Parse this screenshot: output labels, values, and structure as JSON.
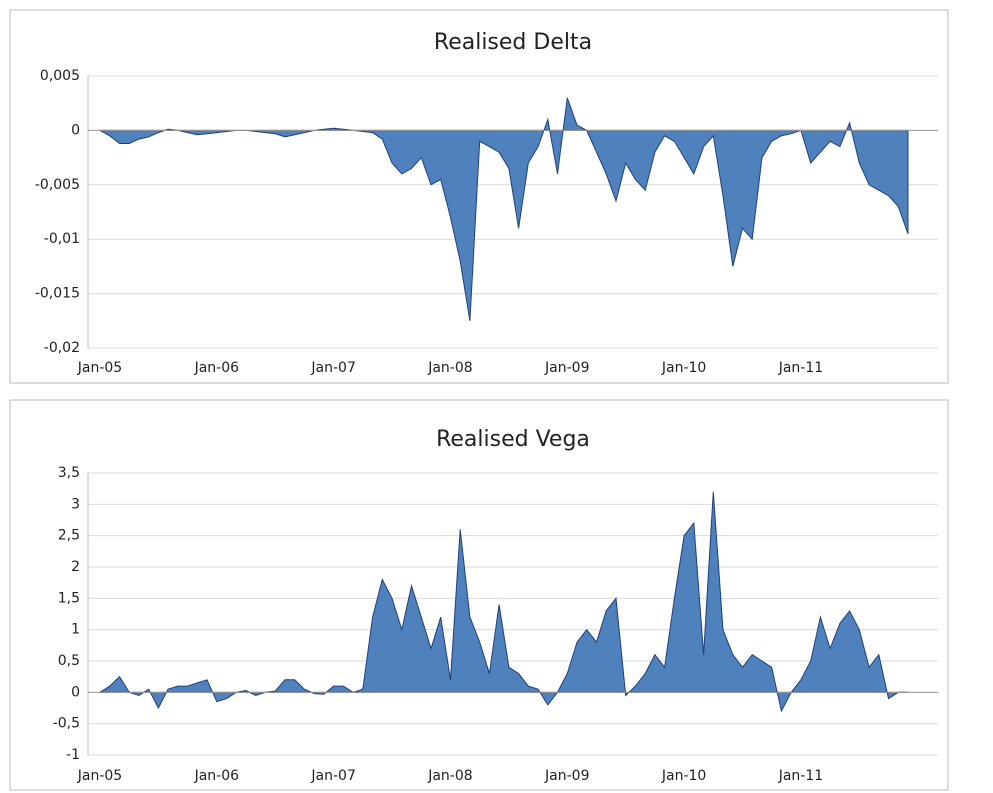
{
  "chart_data": [
    {
      "type": "area",
      "title": "Realised Delta",
      "color": "#4f81bd",
      "grid": true,
      "categories": [
        "Jan-05",
        null,
        null,
        null,
        null,
        null,
        null,
        null,
        null,
        null,
        null,
        null,
        "Jan-06",
        null,
        null,
        null,
        null,
        null,
        null,
        null,
        null,
        null,
        null,
        null,
        "Jan-07",
        null,
        null,
        null,
        null,
        null,
        null,
        null,
        null,
        null,
        null,
        null,
        "Jan-08",
        null,
        null,
        null,
        null,
        null,
        null,
        null,
        null,
        null,
        null,
        null,
        "Jan-09",
        null,
        null,
        null,
        null,
        null,
        null,
        null,
        null,
        null,
        null,
        null,
        "Jan-10",
        null,
        null,
        null,
        null,
        null,
        null,
        null,
        null,
        null,
        null,
        null,
        "Jan-11",
        null,
        null,
        null,
        null,
        null,
        null,
        null,
        null,
        null,
        null,
        null
      ],
      "values": [
        0,
        -0.0005,
        -0.0012,
        -0.0012,
        -0.0008,
        -0.0006,
        -0.0002,
        0.0001,
        0,
        -0.0002,
        -0.0004,
        -0.0003,
        -0.0002,
        -0.0001,
        0,
        0,
        -0.0001,
        -0.0002,
        -0.0003,
        -0.0006,
        -0.0004,
        -0.0002,
        0,
        0.0001,
        0.0002,
        0.0001,
        0,
        -0.0001,
        -0.0002,
        -0.0008,
        -0.003,
        -0.004,
        -0.0035,
        -0.0025,
        -0.005,
        -0.0045,
        -0.008,
        -0.012,
        -0.0175,
        -0.001,
        -0.0015,
        -0.002,
        -0.0035,
        -0.009,
        -0.003,
        -0.0015,
        0.001,
        -0.004,
        0.003,
        0.0005,
        0,
        -0.002,
        -0.004,
        -0.0065,
        -0.003,
        -0.0045,
        -0.0055,
        -0.002,
        -0.0005,
        -0.001,
        -0.0025,
        -0.004,
        -0.0015,
        -0.0005,
        -0.006,
        -0.0125,
        -0.009,
        -0.01,
        -0.0025,
        -0.001,
        -0.0005,
        -0.0003,
        0,
        -0.003,
        -0.002,
        -0.001,
        -0.0015,
        0.0007,
        -0.003,
        -0.005,
        -0.0055,
        -0.006,
        -0.007,
        -0.0095
      ],
      "ylim": [
        -0.02,
        0.005
      ],
      "yticks": [
        {
          "value": -0.02,
          "label": "-0,02"
        },
        {
          "value": -0.015,
          "label": "-0,015"
        },
        {
          "value": -0.01,
          "label": "-0,01"
        },
        {
          "value": -0.005,
          "label": "-0,005"
        },
        0,
        {
          "value": 0.005,
          "label": "0,005"
        }
      ]
    },
    {
      "type": "area",
      "title": "Realised Vega",
      "color": "#4f81bd",
      "grid": true,
      "categories": [
        "Jan-05",
        null,
        null,
        null,
        null,
        null,
        null,
        null,
        null,
        null,
        null,
        null,
        "Jan-06",
        null,
        null,
        null,
        null,
        null,
        null,
        null,
        null,
        null,
        null,
        null,
        "Jan-07",
        null,
        null,
        null,
        null,
        null,
        null,
        null,
        null,
        null,
        null,
        null,
        "Jan-08",
        null,
        null,
        null,
        null,
        null,
        null,
        null,
        null,
        null,
        null,
        null,
        "Jan-09",
        null,
        null,
        null,
        null,
        null,
        null,
        null,
        null,
        null,
        null,
        null,
        "Jan-10",
        null,
        null,
        null,
        null,
        null,
        null,
        null,
        null,
        null,
        null,
        null,
        "Jan-11",
        null,
        null,
        null,
        null,
        null,
        null,
        null,
        null,
        null,
        null,
        null
      ],
      "values": [
        0,
        0.1,
        0.25,
        0,
        -0.05,
        0.05,
        -0.25,
        0.05,
        0.1,
        0.1,
        0.15,
        0.2,
        -0.15,
        -0.1,
        0,
        0.03,
        -0.05,
        0,
        0.02,
        0.2,
        0.2,
        0.05,
        -0.02,
        -0.03,
        0.1,
        0.1,
        0,
        0.05,
        1.2,
        1.8,
        1.5,
        1.0,
        1.7,
        1.2,
        0.7,
        1.2,
        0.2,
        2.6,
        1.2,
        0.8,
        0.3,
        1.4,
        0.4,
        0.3,
        0.1,
        0.05,
        -0.2,
        0,
        0.3,
        0.8,
        1.0,
        0.8,
        1.3,
        1.5,
        -0.05,
        0.1,
        0.3,
        0.6,
        0.4,
        1.5,
        2.5,
        2.7,
        0.6,
        3.2,
        1.0,
        0.6,
        0.4,
        0.6,
        0.5,
        0.4,
        -0.3,
        0,
        0.2,
        0.5,
        1.2,
        0.7,
        1.1,
        1.3,
        1.0,
        0.4,
        0.6,
        -0.1,
        0,
        0
      ],
      "ylim": [
        -1,
        3.5
      ],
      "yticks": [
        -1,
        {
          "value": -0.5,
          "label": "-0,5"
        },
        0,
        {
          "value": 0.5,
          "label": "0,5"
        },
        1,
        {
          "value": 1.5,
          "label": "1,5"
        },
        2,
        {
          "value": 2.5,
          "label": "2,5"
        },
        3,
        {
          "value": 3.5,
          "label": "3,5"
        }
      ]
    }
  ]
}
